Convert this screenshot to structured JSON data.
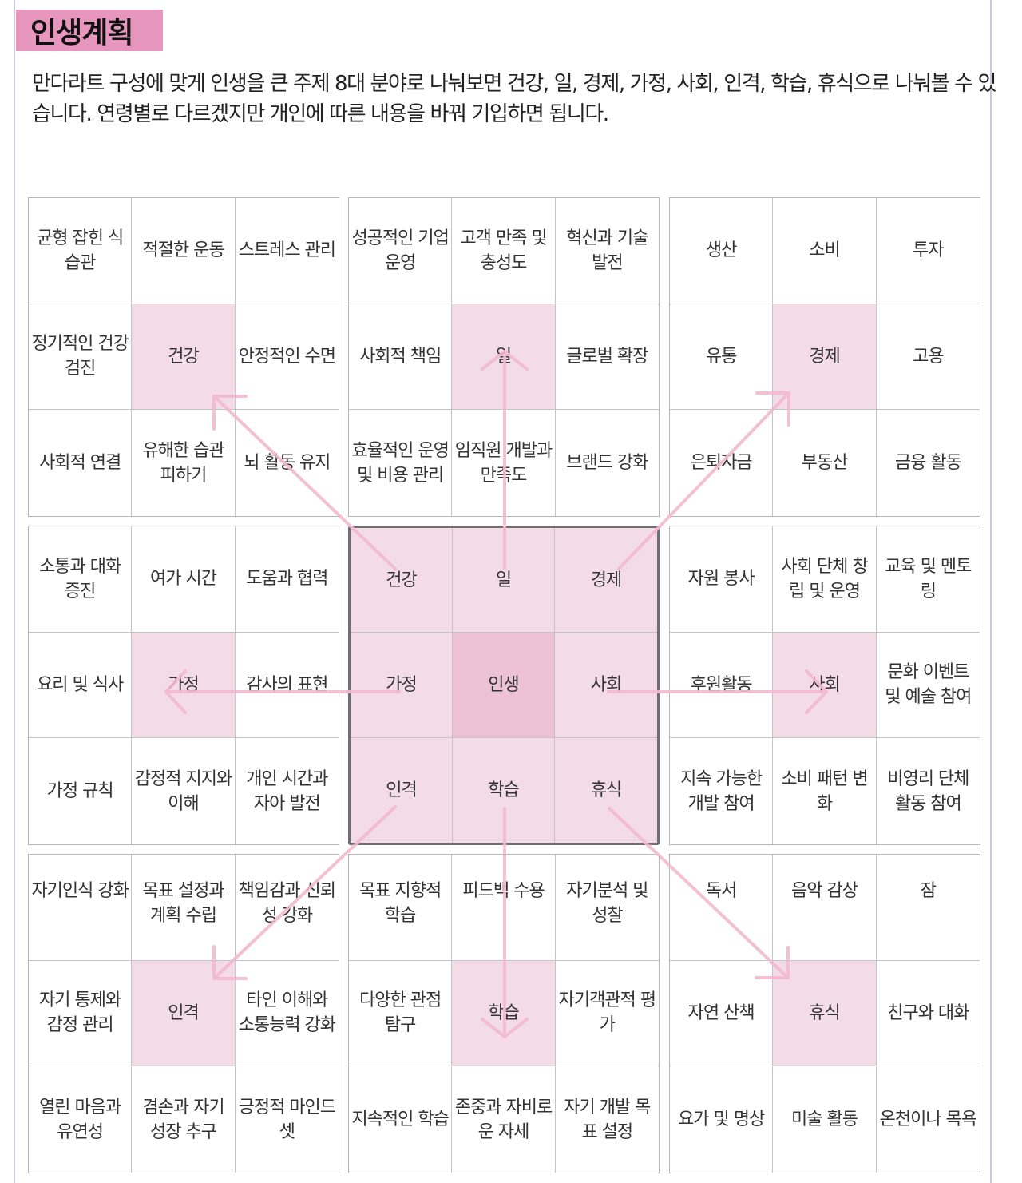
{
  "title": "인생계획",
  "intro": "만다라트 구성에 맞게 인생을 큰 주제 8대 분야로 나눠보면 건강, 일, 경제, 가정, 사회, 인격, 학습, 휴식으로 나눠볼 수 있습니다. 연령별로 다르겠지만 개인에 따른 내용을 바꿔 기입하면 됩니다.",
  "colors": {
    "title_bg": "#e796bd",
    "highlight": "#f4dce7",
    "core": "#edc1d6",
    "arrow": "#f2b9cf"
  },
  "blocks": [
    {
      "cells": [
        "균형 잡힌 식습관",
        "적절한 운동",
        "스트레스 관리",
        "정기적인 건강 검진",
        "건강",
        "안정적인 수면",
        "사회적 연결",
        "유해한 습관 피하기",
        "뇌 활동 유지"
      ]
    },
    {
      "cells": [
        "성공적인 기업 운영",
        "고객 만족 및 충성도",
        "혁신과 기술 발전",
        "사회적 책임",
        "일",
        "글로벌 확장",
        "효율적인 운영 및 비용 관리",
        "임직원 개발과 만족도",
        "브랜드 강화"
      ]
    },
    {
      "cells": [
        "생산",
        "소비",
        "투자",
        "유통",
        "경제",
        "고용",
        "은퇴자금",
        "부동산",
        "금융 활동"
      ]
    },
    {
      "cells": [
        "소통과 대화 증진",
        "여가 시간",
        "도움과 협력",
        "요리 및 식사",
        "가정",
        "감사의 표현",
        "가정 규칙",
        "감정적 지지와 이해",
        "개인 시간과 자아 발전"
      ]
    },
    {
      "cells": [
        "건강",
        "일",
        "경제",
        "가정",
        "인생",
        "사회",
        "인격",
        "학습",
        "휴식"
      ]
    },
    {
      "cells": [
        "자원 봉사",
        "사회 단체 창립 및 운영",
        "교육 및 멘토링",
        "후원활동",
        "사회",
        "문화 이벤트 및 예술 참여",
        "지속 가능한 개발 참여",
        "소비 패턴 변화",
        "비영리 단체 활동 참여"
      ]
    },
    {
      "cells": [
        "자기인식 강화",
        "목표 설정과 계획 수립",
        "책임감과 신뢰성 강화",
        "자기 통제와 감정 관리",
        "인격",
        "타인 이해와 소통능력 강화",
        "열린 마음과 유연성",
        "겸손과 자기 성장 추구",
        "긍정적 마인드셋"
      ]
    },
    {
      "cells": [
        "목표 지향적 학습",
        "피드백 수용",
        "자기분석 및 성찰",
        "다양한 관점 탐구",
        "학습",
        "자기객관적 평가",
        "지속적인 학습",
        "존중과 자비로운 자세",
        "자기 개발 목표 설정"
      ]
    },
    {
      "cells": [
        "독서",
        "음악 감상",
        "잠",
        "자연 산책",
        "휴식",
        "친구와 대화",
        "요가 및 명상",
        "미술 활동",
        "온천이나 목욕"
      ]
    }
  ]
}
